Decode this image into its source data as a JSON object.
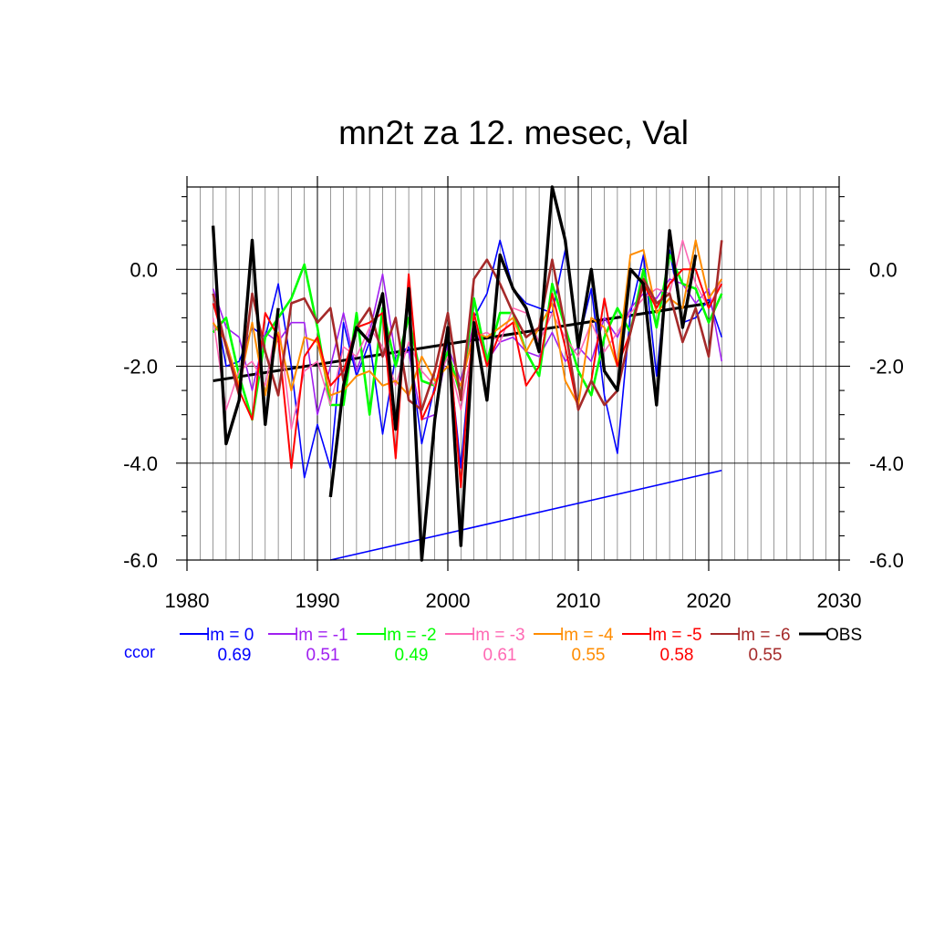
{
  "chart_data": {
    "type": "line",
    "title": "mn2t za 12. mesec, Val",
    "xlabel": "",
    "ylabel": "",
    "xlim": [
      1980,
      2030
    ],
    "ylim": [
      -6.0,
      1.7
    ],
    "x_ticks": [
      1980,
      1990,
      2000,
      2010,
      2020,
      2030
    ],
    "x_tick_labels": [
      "1980",
      "1990",
      "2000",
      "2010",
      "2020",
      "2030"
    ],
    "y_ticks": [
      0.0,
      -2.0,
      -4.0,
      -6.0
    ],
    "y_tick_labels": [
      "0.0",
      "-2.0",
      "-4.0",
      "-6.0"
    ],
    "grid": "vertical lines every year, horizontal lines at major y ticks",
    "x": [
      1982,
      1983,
      1984,
      1985,
      1986,
      1987,
      1988,
      1989,
      1990,
      1991,
      1992,
      1993,
      1994,
      1995,
      1996,
      1997,
      1998,
      1999,
      2000,
      2001,
      2002,
      2003,
      2004,
      2005,
      2006,
      2007,
      2008,
      2009,
      2010,
      2011,
      2012,
      2013,
      2014,
      2015,
      2016,
      2017,
      2018,
      2019,
      2020,
      2021
    ],
    "series": [
      {
        "name": "lm = 0",
        "color": "#0000ff",
        "width": 1.6,
        "values": [
          -0.5,
          -2.0,
          -1.9,
          -1.2,
          -1.4,
          -0.3,
          -2.0,
          -4.3,
          -3.2,
          -4.1,
          -1.1,
          -2.2,
          -1.5,
          -3.4,
          -1.8,
          -1.6,
          -3.6,
          -2.4,
          -1.5,
          -4.1,
          -1.0,
          -0.5,
          0.6,
          -0.4,
          -0.7,
          -0.8,
          -0.9,
          0.4,
          -1.5,
          -0.4,
          -2.6,
          -3.8,
          -0.9,
          0.3,
          -2.2,
          0.4,
          -1.1,
          -1.0,
          -0.6,
          -1.4
        ]
      },
      {
        "name": "lm = -1",
        "color": "#a020f0",
        "width": 1.6,
        "values": [
          -0.4,
          -1.2,
          -1.4,
          -2.5,
          -1.3,
          -1.5,
          -1.1,
          -1.1,
          -3.0,
          -2.0,
          -0.9,
          -2.1,
          -1.3,
          -0.1,
          -1.8,
          -1.7,
          -3.1,
          -3.0,
          -1.6,
          -2.3,
          -1.1,
          -1.9,
          -1.5,
          -1.4,
          -1.7,
          -1.8,
          -1.3,
          -1.9,
          -1.6,
          -1.9,
          -1.0,
          -1.4,
          -0.8,
          -0.5,
          -0.6,
          -0.2,
          -0.3,
          -0.7,
          -0.4,
          -1.9
        ]
      },
      {
        "name": "lm = -2",
        "color": "#00ff00",
        "width": 2.6,
        "values": [
          -1.3,
          -1.0,
          -2.2,
          -3.1,
          -1.4,
          -1.0,
          -0.6,
          0.1,
          -1.2,
          -2.8,
          -2.8,
          -0.9,
          -3.0,
          -0.8,
          -2.0,
          -1.0,
          -2.3,
          -2.4,
          -1.7,
          -2.6,
          -0.6,
          -1.9,
          -0.9,
          -0.9,
          -1.7,
          -2.2,
          -0.3,
          -1.2,
          -2.1,
          -2.6,
          -1.4,
          -0.8,
          -1.3,
          0.0,
          -1.2,
          0.3,
          -0.3,
          -0.4,
          -1.1,
          -0.5
        ]
      },
      {
        "name": "lm = -3",
        "color": "#ff69b4",
        "width": 1.6,
        "values": [
          -1.0,
          -2.9,
          -2.1,
          -1.9,
          -2.4,
          -1.0,
          -3.3,
          -2.1,
          -1.9,
          -2.8,
          -1.6,
          -1.8,
          -1.2,
          -1.6,
          -2.4,
          -1.5,
          -2.1,
          -2.4,
          -1.8,
          -2.9,
          -1.4,
          -1.3,
          -1.5,
          -0.8,
          -0.9,
          -1.5,
          -0.9,
          -1.4,
          -1.8,
          -1.1,
          -1.7,
          -1.3,
          -0.9,
          -0.6,
          -0.4,
          -0.5,
          0.6,
          -0.3,
          -0.8,
          -0.2
        ]
      },
      {
        "name": "lm = -4",
        "color": "#ff8c00",
        "width": 2.0,
        "values": [
          -1.1,
          -1.5,
          -2.4,
          -1.1,
          -2.6,
          -1.3,
          -2.5,
          -1.4,
          -1.5,
          -2.6,
          -2.5,
          -2.2,
          -2.1,
          -2.4,
          -2.3,
          -2.6,
          -1.8,
          -2.3,
          -2.0,
          -2.4,
          -1.3,
          -1.4,
          -1.2,
          -1.0,
          -1.7,
          -1.2,
          -0.7,
          -2.3,
          -2.8,
          -1.0,
          -1.2,
          -2.0,
          0.3,
          0.4,
          -0.9,
          -0.6,
          -0.8,
          0.6,
          -0.6,
          -0.2
        ]
      },
      {
        "name": "lm = -5",
        "color": "#ff0000",
        "width": 2.0,
        "values": [
          -0.7,
          -1.6,
          -2.5,
          -3.1,
          -0.9,
          -1.4,
          -4.1,
          -1.8,
          -1.4,
          -2.4,
          -2.1,
          -1.2,
          -1.1,
          -0.9,
          -3.9,
          -0.1,
          -3.1,
          -2.5,
          -1.2,
          -4.5,
          -0.9,
          -2.0,
          -1.3,
          -1.1,
          -2.4,
          -2.0,
          -0.5,
          -1.6,
          -2.9,
          -2.3,
          -0.6,
          -2.0,
          -1.3,
          -0.3,
          -0.8,
          -0.3,
          0.0,
          0.0,
          -0.8,
          -0.3
        ]
      },
      {
        "name": "lm = -6",
        "color": "#a52a2a",
        "width": 2.6,
        "values": [
          -0.5,
          -1.6,
          -2.6,
          -0.5,
          -1.7,
          -2.6,
          -0.7,
          -0.6,
          -1.1,
          -0.8,
          -2.3,
          -1.2,
          -0.8,
          -1.8,
          -1.0,
          -2.7,
          -2.9,
          -2.1,
          -0.9,
          -2.7,
          -0.2,
          0.2,
          -0.3,
          -0.9,
          -1.4,
          -1.2,
          0.2,
          -1.2,
          -2.9,
          -2.3,
          -2.8,
          -2.5,
          -1.3,
          -0.2,
          -0.7,
          -0.5,
          -1.5,
          -0.8,
          -1.8,
          0.6
        ]
      },
      {
        "name": "OBS",
        "color": "#000000",
        "width": 3.4,
        "values": [
          0.9,
          -3.6,
          -2.7,
          0.6,
          -3.2,
          -0.8,
          null,
          null,
          null,
          -4.7,
          -2.4,
          -1.2,
          -1.5,
          -0.5,
          -3.3,
          -0.4,
          -6.0,
          -3.1,
          -1.2,
          -5.7,
          -1.1,
          -2.7,
          0.3,
          -0.4,
          -0.8,
          -1.7,
          1.7,
          0.6,
          -1.6,
          0.0,
          -2.1,
          -2.5,
          0.0,
          -0.3,
          -2.8,
          0.8,
          -1.2,
          0.3,
          null,
          null
        ]
      }
    ],
    "trend_lines": [
      {
        "name": "OBS trend",
        "color": "#000000",
        "width": 3.0,
        "x": [
          1982,
          2020
        ],
        "y": [
          -2.3,
          -0.7
        ]
      },
      {
        "name": "lm = 0 trend",
        "color": "#0000ff",
        "width": 1.6,
        "x": [
          1991,
          2021
        ],
        "y": [
          -6.0,
          -4.15
        ]
      }
    ],
    "legend": {
      "placement": "below plot",
      "ccor_label": "ccor",
      "ccor_color": "#0000ff",
      "entries": [
        {
          "label": "lm = 0",
          "ccor": "0.69",
          "color": "#0000ff"
        },
        {
          "label": "lm = -1",
          "ccor": "0.51",
          "color": "#a020f0"
        },
        {
          "label": "lm = -2",
          "ccor": "0.49",
          "color": "#00ff00"
        },
        {
          "label": "lm = -3",
          "ccor": "0.61",
          "color": "#ff69b4"
        },
        {
          "label": "lm = -4",
          "ccor": "0.55",
          "color": "#ff8c00"
        },
        {
          "label": "lm = -5",
          "ccor": "0.58",
          "color": "#ff0000"
        },
        {
          "label": "lm = -6",
          "ccor": "0.55",
          "color": "#a52a2a"
        },
        {
          "label": "OBS",
          "ccor": "",
          "color": "#000000"
        }
      ]
    }
  }
}
